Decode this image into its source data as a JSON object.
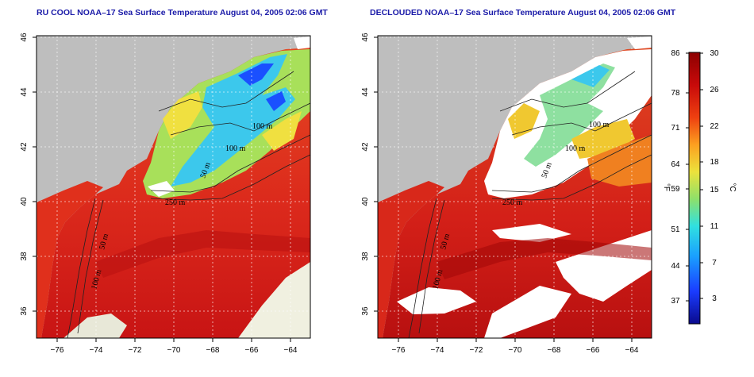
{
  "panels": [
    {
      "id": "left",
      "title": "RU COOL NOAA–17 Sea Surface Temperature August 04, 2005 02:06 GMT",
      "contour_labels": [
        "100 m",
        "100 m",
        "50 m",
        "250 m",
        "50 m",
        "100 m"
      ]
    },
    {
      "id": "right",
      "title": "DECLOUDED NOAA–17 Sea Surface Temperature August 04, 2005 02:06 GMT",
      "contour_labels": [
        "100 m",
        "100 m",
        "50 m",
        "250 m",
        "50 m",
        "100 m"
      ]
    }
  ],
  "axes": {
    "lon_ticks": [
      "−76",
      "−74",
      "−72",
      "−70",
      "−68",
      "−66",
      "−64"
    ],
    "lat_ticks": [
      "46",
      "44",
      "42",
      "40",
      "38",
      "36"
    ]
  },
  "colorbar": {
    "fahrenheit_label": "°F",
    "celsius_label": "°C",
    "fahrenheit_ticks": [
      "86",
      "78",
      "71",
      "64",
      "59",
      "51",
      "44",
      "37"
    ],
    "celsius_ticks": [
      "30",
      "26",
      "22",
      "18",
      "15",
      "11",
      "7",
      "3"
    ],
    "colors": [
      "#0a0a8c",
      "#1a3cff",
      "#1aa0ff",
      "#30e0e0",
      "#8ee06a",
      "#ece23c",
      "#fca020",
      "#ee4010",
      "#c80a0a",
      "#8c0000"
    ]
  },
  "colors": {
    "land": "#bebebe",
    "cloud": "#ffffff",
    "warm_water": "#e0281e",
    "cool_water": "#3cc8ec",
    "grid": "#ffffff"
  }
}
